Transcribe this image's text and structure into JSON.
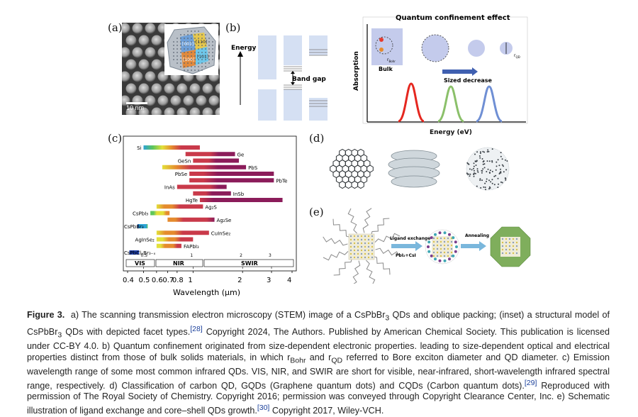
{
  "panel_labels": {
    "a": "(a)",
    "b": "(b)",
    "c": "(c)",
    "d": "(d)",
    "e": "(e)"
  },
  "panel_a": {
    "scale_bar": "10 nm",
    "facets": [
      "[001]",
      "[110]",
      "[100]",
      "[101]"
    ]
  },
  "panel_b": {
    "energy_label": "Energy",
    "band_gap_label": "Band gap",
    "title": "Quantum confinement effect",
    "bulk_label": "Bulk",
    "r_bohr": "r",
    "r_bohr_sub": "Bohr",
    "r_qd": "r",
    "r_qd_sub": "QD",
    "size_label": "Sized decrease",
    "y_axis": "Absorption",
    "x_axis": "Energy (eV)"
  },
  "panel_c": {
    "materials": [
      "Si",
      "Ge",
      "GeSn",
      "PbS",
      "PbSe",
      "PbTe",
      "InAs",
      "InSb",
      "HgTe",
      "Ag₂S",
      "CsPbI₃",
      "Ag₂Se",
      "CsPbBr₃",
      "CuInSe₂",
      "AgInSe₂",
      "FAPbI₃",
      "CsPbClₓBr₃₋ₓ"
    ],
    "regions": [
      "VIS",
      "NIR",
      "SWIR"
    ],
    "xaxis_label": "Wavelength (µm)",
    "ticks": [
      "0.4",
      "0.5",
      "0.6",
      "0.7",
      "0.8",
      "1",
      "2",
      "3",
      "4"
    ],
    "inner_ticks": [
      "0.5",
      "1",
      "2",
      "3"
    ],
    "inner_ticks_label": [
      "0.5",
      "1",
      "2",
      "3"
    ],
    "bars": [
      {
        "name": "Si",
        "from": 0.5,
        "to": 1.1
      },
      {
        "name": "Ge",
        "from": 0.9,
        "to": 1.8
      },
      {
        "name": "GeSn",
        "from": 1.0,
        "to": 1.9
      },
      {
        "name": "PbS",
        "from": 0.65,
        "to": 2.1
      },
      {
        "name": "PbSe",
        "from": 0.95,
        "to": 3.1
      },
      {
        "name": "PbTe",
        "from": 0.95,
        "to": 3.1
      },
      {
        "name": "InAs",
        "from": 0.8,
        "to": 1.6
      },
      {
        "name": "InSb",
        "from": 1.0,
        "to": 1.7
      },
      {
        "name": "HgTe",
        "from": 1.1,
        "to": 3.5
      },
      {
        "name": "Ag₂S",
        "from": 0.6,
        "to": 1.15
      },
      {
        "name": "CsPbI₃",
        "from": 0.55,
        "to": 0.72
      },
      {
        "name": "Ag₂Se",
        "from": 0.7,
        "to": 1.35
      },
      {
        "name": "CsPbBr₃",
        "from": 0.46,
        "to": 0.53
      },
      {
        "name": "CuInSe₂",
        "from": 0.6,
        "to": 1.25
      },
      {
        "name": "AgInSe₂",
        "from": 0.6,
        "to": 1.0
      },
      {
        "name": "FAPbI₃",
        "from": 0.6,
        "to": 0.85
      },
      {
        "name": "CsPbClₓBr₃₋ₓ",
        "from": 0.41,
        "to": 0.47
      }
    ]
  },
  "panel_e": {
    "ligand_exchange": "Ligand exchange",
    "reagents": "PbI₂+CsI",
    "annealing": "Annealing"
  },
  "caption": {
    "label": "Figure 3.",
    "text_1": "a) The scanning transmission electron microscopy (STEM) image of a CsPbBr",
    "text_1b": " QDs and oblique packing; (inset) a structural model of CsPbBr",
    "text_2": " QDs with depicted facet types.",
    "ref_28": "[28]",
    "text_3": " Copyright 2024, The Authors. Published by American Chemical Society. This publication is licensed under CC-BY 4.0. b) Quantum confinement originated from size-dependent electronic properties. leading to size-dependent optical and electrical properties distinct from those of bulk solids materials, in which r",
    "sub_bohr": "Bohr",
    "text_4": " and r",
    "sub_qd": "QD",
    "text_5": " referred to Bore exciton diameter and QD diameter. c) Emission wavelength range of some most common infrared QDs. VIS, NIR, and SWIR are short for visible, near-infrared, short-wavelength infrared spectral range, respectively. d) Classification of carbon QD, GQDs (Graphene quantum dots) and CQDs (Carbon quantum dots).",
    "ref_29": "[29]",
    "text_6": " Reproduced with permission of The Royal Society of Chemistry. Copyright 2016; permission was conveyed through Copyright Clearance Center, Inc. e) Schematic illustration of ligand exchange and core–shell QDs growth.",
    "ref_30": "[30]",
    "text_7": " Copyright 2017, Wiley-VCH.",
    "sub3": "3"
  }
}
